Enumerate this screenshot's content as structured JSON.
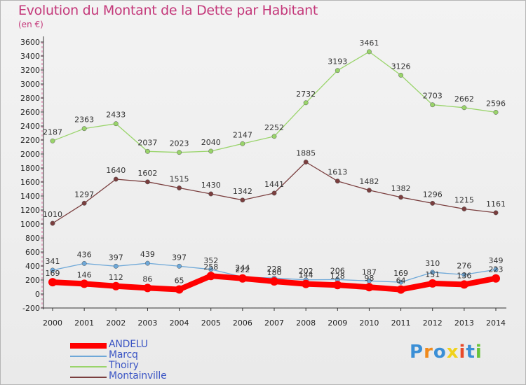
{
  "title": "Evolution du Montant de la Dette par Habitant",
  "subtitle": "(en €)",
  "logo_text": "Proxiti",
  "logo_colors": [
    "#3b8fd6",
    "#f08a1c",
    "#3b8fd6",
    "#f0d21c",
    "#e84a2a",
    "#3b8fd6",
    "#69c33a"
  ],
  "chart_data": {
    "type": "line",
    "x": [
      "2000",
      "2001",
      "2002",
      "2003",
      "2004",
      "2005",
      "2006",
      "2007",
      "2008",
      "2009",
      "2010",
      "2011",
      "2012",
      "2013",
      "2014"
    ],
    "ylim": [
      -200,
      3600
    ],
    "yticks": [
      -200,
      0,
      200,
      400,
      600,
      800,
      1000,
      1200,
      1400,
      1600,
      1800,
      2000,
      2200,
      2400,
      2600,
      2800,
      3000,
      3200,
      3400,
      3600
    ],
    "grid": false,
    "legend_position": "bottom-left",
    "series": [
      {
        "name": "ANDELU",
        "color": "#ff0000",
        "emphasis": true,
        "values": [
          169,
          146,
          112,
          86,
          65,
          258,
          222,
          180,
          144,
          128,
          98,
          64,
          151,
          136,
          223
        ]
      },
      {
        "name": "Marcq",
        "color": "#6ea8d8",
        "emphasis": false,
        "values": [
          341,
          436,
          397,
          439,
          397,
          352,
          244,
          228,
          202,
          206,
          187,
          169,
          310,
          276,
          349
        ]
      },
      {
        "name": "Thoiry",
        "color": "#99d46a",
        "emphasis": false,
        "values": [
          2187,
          2363,
          2433,
          2037,
          2023,
          2040,
          2147,
          2252,
          2732,
          3193,
          3461,
          3126,
          2703,
          2662,
          2596
        ]
      },
      {
        "name": "Montainville",
        "color": "#7a3e3e",
        "emphasis": false,
        "values": [
          1010,
          1297,
          1640,
          1602,
          1515,
          1430,
          1342,
          1441,
          1885,
          1613,
          1482,
          1382,
          1296,
          1215,
          1161
        ]
      }
    ]
  }
}
